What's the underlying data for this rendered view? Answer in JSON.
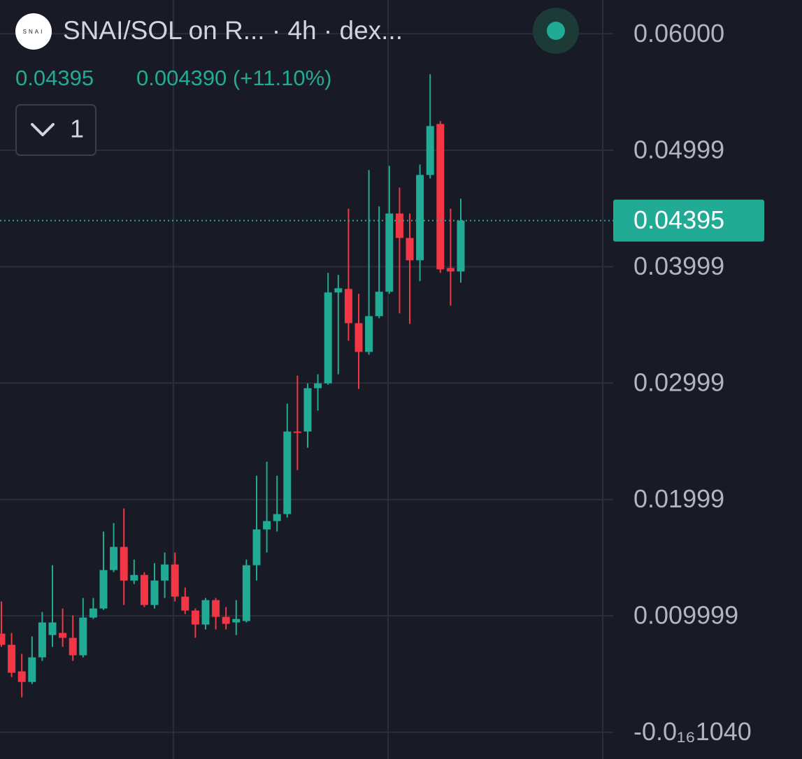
{
  "header": {
    "logo": "SNAI",
    "title": "SNAI/SOL on R... · 4h · dex...",
    "price": "0.04395",
    "change": "0.004390 (+11.10%)",
    "indicator_count": "1"
  },
  "chart_data": {
    "type": "candlestick",
    "up_color": "#22ab94",
    "down_color": "#f23645",
    "grid": true,
    "ylim": [
      -0.0023,
      0.0629
    ],
    "yticks": [
      {
        "value": 0.06,
        "label": "0.06000"
      },
      0.04999,
      0.03999,
      0.02999,
      0.01999,
      0.009999,
      {
        "value": -1.04e-17,
        "label": "-0.0₁₆1040"
      }
    ],
    "current_price": 0.04395,
    "open": [
      0.00847,
      0.00751,
      0.00523,
      0.00432,
      0.00643,
      0.00835,
      0.00853,
      0.00811,
      0.00661,
      0.00985,
      0.01063,
      0.01393,
      0.01592,
      0.01303,
      0.01351,
      0.01093,
      0.01303,
      0.01441,
      0.01165,
      0.01045,
      0.00925,
      0.01135,
      0.00991,
      0.00943,
      0.00955,
      0.01435,
      0.01742,
      0.01814,
      0.01874,
      0.02583,
      0.02583,
      0.02955,
      0.02997,
      0.03778,
      0.03808,
      0.03514,
      0.03267,
      0.03574,
      0.03784,
      0.04456,
      0.04246,
      0.04054,
      0.04787,
      0.05225,
      0.03988,
      0.03958
    ],
    "high": [
      0.01123,
      0.00853,
      0.00673,
      0.00823,
      0.01033,
      0.01435,
      0.01063,
      0.01003,
      0.01153,
      0.01153,
      0.01724,
      0.01796,
      0.01922,
      0.01483,
      0.01375,
      0.01453,
      0.01544,
      0.01544,
      0.01243,
      0.01063,
      0.01153,
      0.01153,
      0.01075,
      0.01135,
      0.01483,
      0.02204,
      0.02324,
      0.02204,
      0.02823,
      0.03063,
      0.02997,
      0.03075,
      0.03946,
      0.03928,
      0.04498,
      0.03766,
      0.04829,
      0.04517,
      0.04865,
      0.04679,
      0.04456,
      0.04877,
      0.05652,
      0.05249,
      0.04498,
      0.04583
    ],
    "low": [
      0.00733,
      0.00474,
      0.003,
      0.00414,
      0.00613,
      0.00733,
      0.00733,
      0.00613,
      0.00643,
      0.00973,
      0.01051,
      0.01375,
      0.01093,
      0.01273,
      0.01075,
      0.01063,
      0.01153,
      0.01123,
      0.01015,
      0.00811,
      0.00883,
      0.00883,
      0.00883,
      0.00835,
      0.00943,
      0.01303,
      0.01544,
      0.01724,
      0.01844,
      0.02252,
      0.02444,
      0.02763,
      0.02985,
      0.03075,
      0.03363,
      0.02949,
      0.03243,
      0.03556,
      0.03766,
      0.03598,
      0.03508,
      0.03874,
      0.04757,
      0.03946,
      0.03664,
      0.03862
    ],
    "close": [
      0.00751,
      0.00511,
      0.00432,
      0.00643,
      0.00943,
      0.00943,
      0.00811,
      0.00661,
      0.00985,
      0.01063,
      0.01393,
      0.01592,
      0.01303,
      0.01351,
      0.01093,
      0.01303,
      0.01441,
      0.01165,
      0.01045,
      0.00925,
      0.01135,
      0.00991,
      0.00931,
      0.00973,
      0.01435,
      0.01742,
      0.01814,
      0.01874,
      0.02583,
      0.02577,
      0.02955,
      0.02997,
      0.03778,
      0.03814,
      0.03514,
      0.03267,
      0.03574,
      0.03784,
      0.04456,
      0.04246,
      0.04054,
      0.04787,
      0.05207,
      0.03976,
      0.03958,
      0.04395
    ]
  }
}
